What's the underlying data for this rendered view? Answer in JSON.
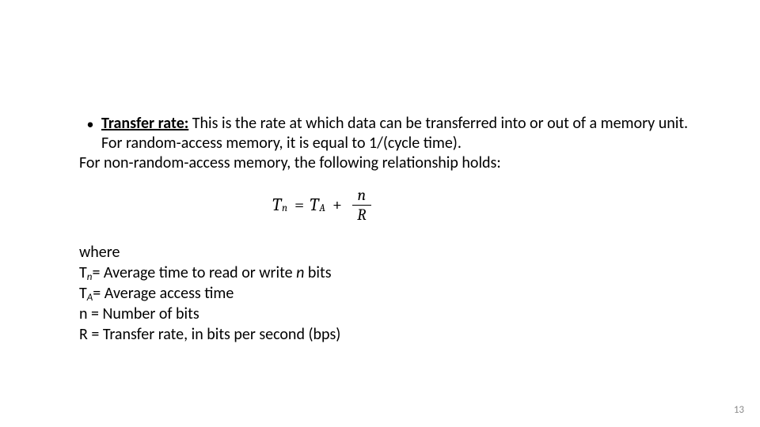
{
  "bullet": {
    "marker": "•",
    "term": "Transfer rate:",
    "text_after_term": " This is the rate at which data can be transferred into or out of a memory unit. For random-access memory, it is equal to 1/(cycle time).",
    "followon": "For non-random-access memory, the following relationship holds:"
  },
  "formula": {
    "Tn_T": "T",
    "Tn_sub": "n",
    "eq": "=",
    "TA_T": "T",
    "TA_sub": "A",
    "plus": "+",
    "frac_num": "n",
    "frac_den": "R"
  },
  "defs": {
    "where": "where",
    "line1_pre": "T",
    "line1_sub": "n",
    "line1_rest": "= Average time to read or write ",
    "line1_ital": "n",
    "line1_tail": " bits",
    "line2_pre": "T",
    "line2_sub": "A",
    "line2_rest": "= Average access time",
    "line3": "n = Number of bits",
    "line4": "R = Transfer rate, in bits per second (bps)"
  },
  "page_number": "13"
}
